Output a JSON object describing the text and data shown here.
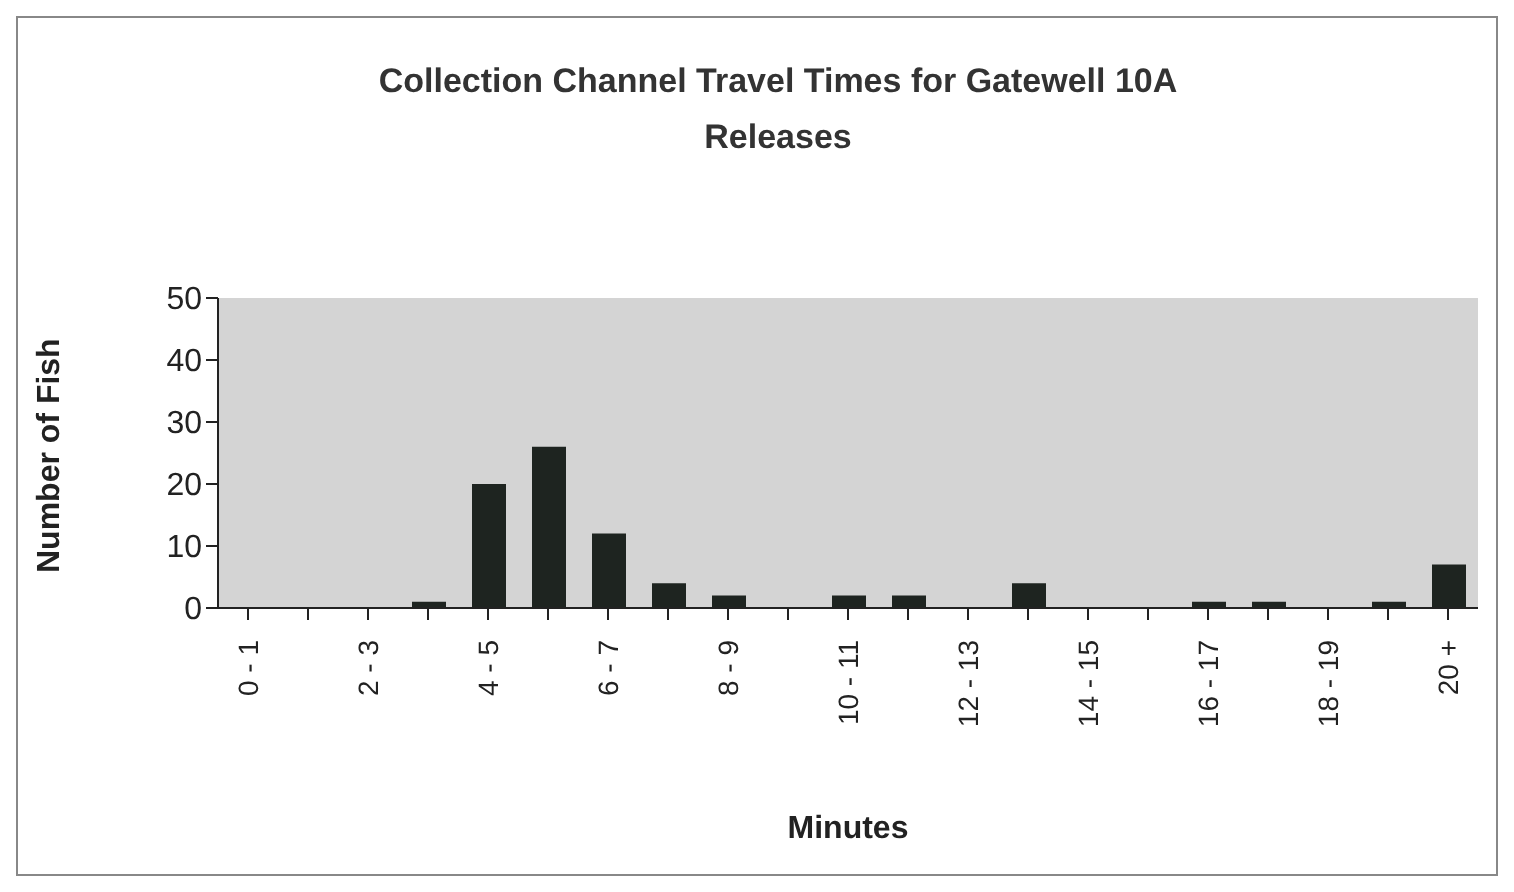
{
  "chart_data": {
    "type": "bar",
    "title": "Collection Channel Travel Times for Gatewell 10A Releases",
    "xlabel": "Minutes",
    "ylabel": "Number of Fish",
    "categories": [
      "0 - 1",
      null,
      "2 - 3",
      null,
      "4 - 5",
      null,
      "6 - 7",
      null,
      "8 - 9",
      null,
      "10 - 11",
      null,
      "12 - 13",
      null,
      "14 - 15",
      null,
      "16 - 17",
      null,
      "18 - 19",
      null,
      "20 +"
    ],
    "values": [
      0,
      0,
      0,
      1,
      20,
      26,
      12,
      4,
      2,
      0,
      2,
      2,
      0,
      4,
      0,
      0,
      1,
      1,
      0,
      1,
      7
    ],
    "color": "#1e2420",
    "ylim": [
      0,
      50
    ],
    "yticks": [
      0,
      10,
      20,
      30,
      40,
      50
    ],
    "grid": false
  }
}
